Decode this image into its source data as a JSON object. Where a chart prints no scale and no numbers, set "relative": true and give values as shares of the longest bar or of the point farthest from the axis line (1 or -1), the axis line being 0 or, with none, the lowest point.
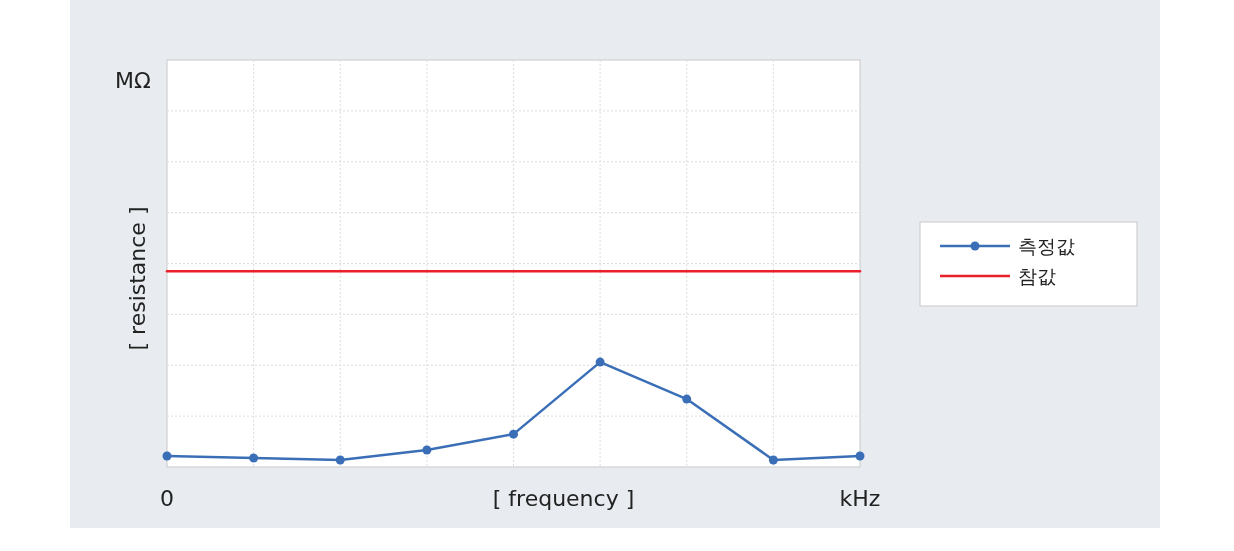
{
  "chart_data": {
    "type": "line",
    "xlabel": "[ frequency ]",
    "ylabel": "[ resistance ]",
    "annotations": [
      "MΩ"
    ],
    "categories": [
      "0",
      null,
      null,
      null,
      null,
      null,
      null,
      null,
      "kHz"
    ],
    "relative": true,
    "grid": true,
    "legend": "right",
    "marker": "circle",
    "series": [
      {
        "name": "측정값",
        "color": "#3a6fb7",
        "values": [
          0.056,
          0.046,
          0.036,
          0.087,
          0.168,
          0.536,
          0.347,
          0.036,
          0.056
        ]
      },
      {
        "name": "참값",
        "color": "#e8202a",
        "marker": "none",
        "values": [
          1,
          1,
          1,
          1,
          1,
          1,
          1,
          1,
          1
        ]
      }
    ]
  }
}
